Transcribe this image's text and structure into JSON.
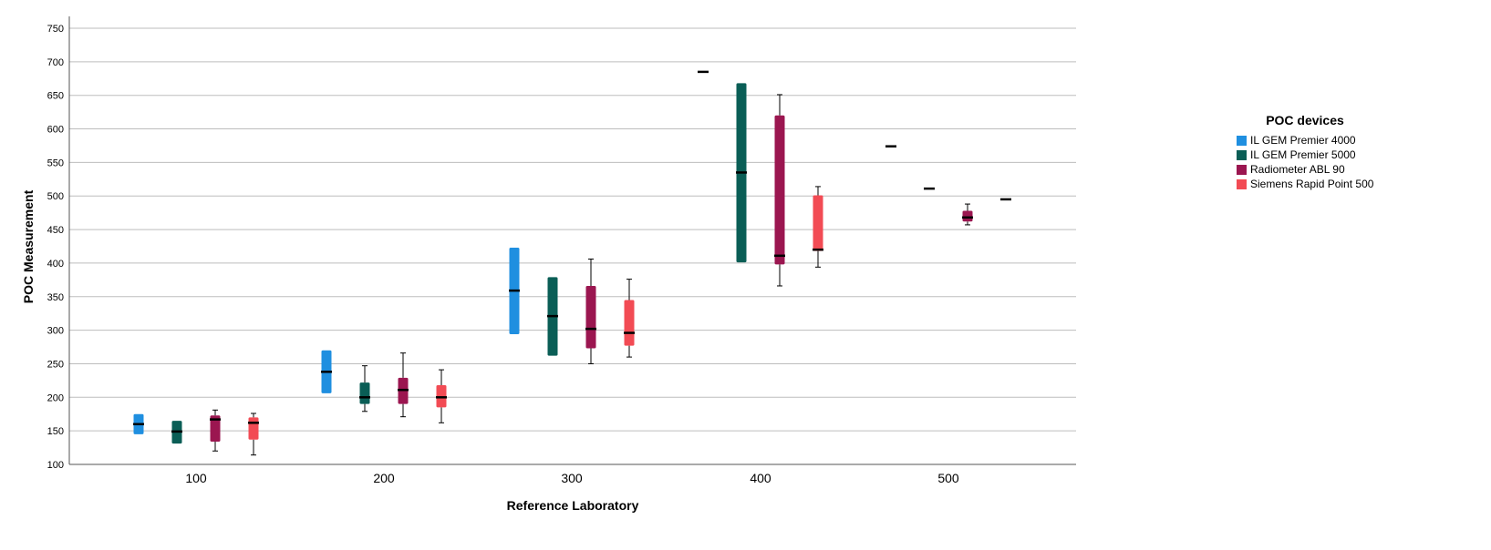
{
  "chart_data": {
    "type": "boxplot",
    "xlabel": "Reference Laboratory",
    "ylabel": "POC Measurement",
    "ylim": [
      100,
      760
    ],
    "yticks": [
      100,
      150,
      200,
      250,
      300,
      350,
      400,
      450,
      500,
      550,
      600,
      650,
      700,
      750
    ],
    "categories": [
      "100",
      "200",
      "300",
      "400",
      "500"
    ],
    "grid": true,
    "legend": {
      "title": "POC devices",
      "placement": "right",
      "items": [
        {
          "name": "IL GEM Premier 4000",
          "color": "#1f8fe0"
        },
        {
          "name": "IL GEM Premier 5000",
          "color": "#0a5e56"
        },
        {
          "name": "Radiometer ABL 90",
          "color": "#9b1650"
        },
        {
          "name": "Siemens Rapid Point 500",
          "color": "#f24b54"
        }
      ]
    },
    "boxes": [
      {
        "group": "100",
        "series": 0,
        "min": 145,
        "q1": 145,
        "median": 160,
        "q3": 175,
        "max": 175
      },
      {
        "group": "100",
        "series": 1,
        "min": 131,
        "q1": 131,
        "median": 149,
        "q3": 165,
        "max": 165
      },
      {
        "group": "100",
        "series": 2,
        "min": 120,
        "q1": 134,
        "median": 167,
        "q3": 173,
        "max": 181
      },
      {
        "group": "100",
        "series": 3,
        "min": 114,
        "q1": 137,
        "median": 162,
        "q3": 170,
        "max": 176
      },
      {
        "group": "200",
        "series": 0,
        "min": 206,
        "q1": 206,
        "median": 238,
        "q3": 270,
        "max": 270
      },
      {
        "group": "200",
        "series": 1,
        "min": 179,
        "q1": 190,
        "median": 200,
        "q3": 222,
        "max": 247
      },
      {
        "group": "200",
        "series": 2,
        "min": 171,
        "q1": 190,
        "median": 211,
        "q3": 229,
        "max": 266
      },
      {
        "group": "200",
        "series": 3,
        "min": 162,
        "q1": 185,
        "median": 200,
        "q3": 218,
        "max": 241
      },
      {
        "group": "300",
        "series": 0,
        "min": 294,
        "q1": 294,
        "median": 359,
        "q3": 423,
        "max": 423
      },
      {
        "group": "300",
        "series": 1,
        "min": 262,
        "q1": 262,
        "median": 321,
        "q3": 379,
        "max": 379
      },
      {
        "group": "300",
        "series": 2,
        "min": 250,
        "q1": 273,
        "median": 302,
        "q3": 366,
        "max": 406
      },
      {
        "group": "300",
        "series": 3,
        "min": 260,
        "q1": 277,
        "median": 296,
        "q3": 345,
        "max": 376
      },
      {
        "group": "400",
        "series": 0,
        "min": 685,
        "q1": 685,
        "median": 685,
        "q3": 685,
        "max": 685
      },
      {
        "group": "400",
        "series": 1,
        "min": 401,
        "q1": 401,
        "median": 535,
        "q3": 668,
        "max": 668
      },
      {
        "group": "400",
        "series": 2,
        "min": 366,
        "q1": 398,
        "median": 411,
        "q3": 620,
        "max": 651
      },
      {
        "group": "400",
        "series": 3,
        "min": 394,
        "q1": 418,
        "median": 420,
        "q3": 501,
        "max": 514
      },
      {
        "group": "500",
        "series": 0,
        "min": 574,
        "q1": 574,
        "median": 574,
        "q3": 574,
        "max": 574
      },
      {
        "group": "500",
        "series": 1,
        "min": 511,
        "q1": 511,
        "median": 511,
        "q3": 511,
        "max": 511
      },
      {
        "group": "500",
        "series": 2,
        "min": 457,
        "q1": 462,
        "median": 468,
        "q3": 478,
        "max": 488
      },
      {
        "group": "500",
        "series": 3,
        "min": 495,
        "q1": 495,
        "median": 495,
        "q3": 495,
        "max": 495
      }
    ]
  }
}
